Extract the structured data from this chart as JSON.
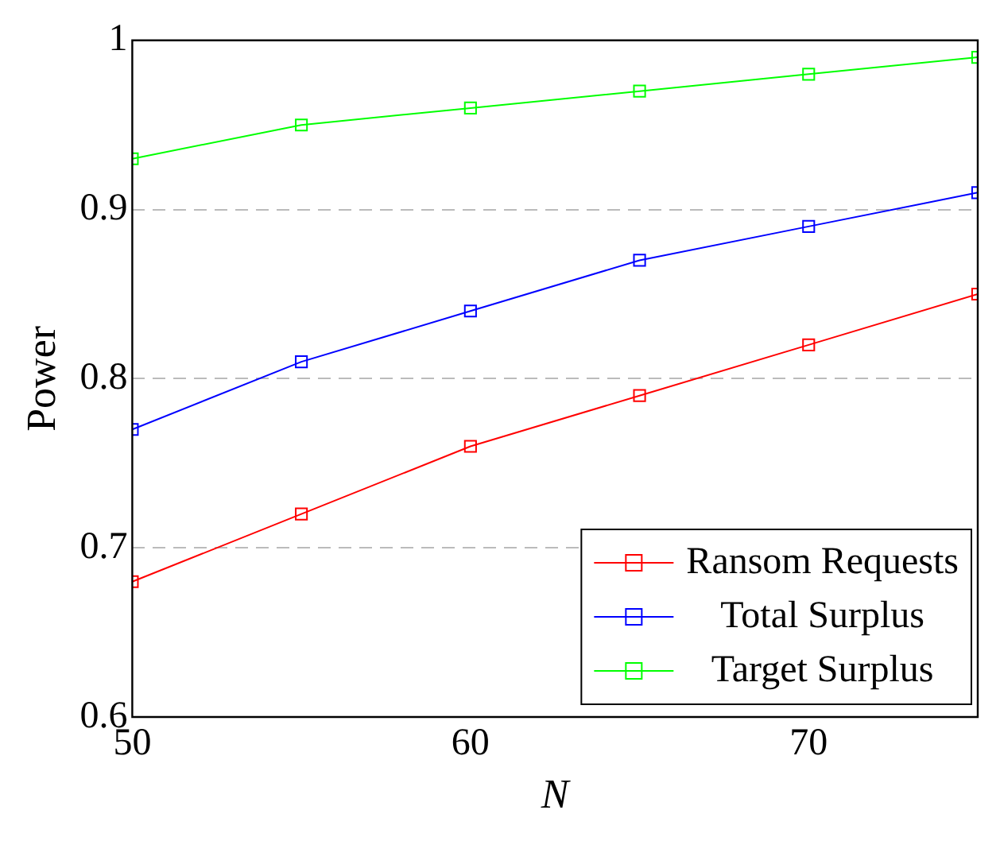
{
  "chart_data": {
    "type": "line",
    "xlabel": "N",
    "ylabel": "Power",
    "x": [
      50,
      55,
      60,
      65,
      70,
      75
    ],
    "xlim": [
      50,
      75
    ],
    "xticks": [
      50,
      60,
      70
    ],
    "ylim": [
      0.6,
      1
    ],
    "yticks": [
      0.6,
      0.7,
      0.8,
      0.9,
      1
    ],
    "grid": "y",
    "legend": "bottom right",
    "marker": "square",
    "line_style": "solid",
    "series": [
      {
        "name": "Ransom Requests",
        "color": "#ff0000",
        "values": [
          0.68,
          0.72,
          0.76,
          0.79,
          0.82,
          0.85
        ]
      },
      {
        "name": "Total Surplus",
        "color": "#0000ff",
        "values": [
          0.77,
          0.81,
          0.84,
          0.87,
          0.89,
          0.91
        ]
      },
      {
        "name": "Target Surplus",
        "color": "#00ff00",
        "values": [
          0.93,
          0.95,
          0.96,
          0.97,
          0.98,
          0.99
        ]
      }
    ]
  }
}
